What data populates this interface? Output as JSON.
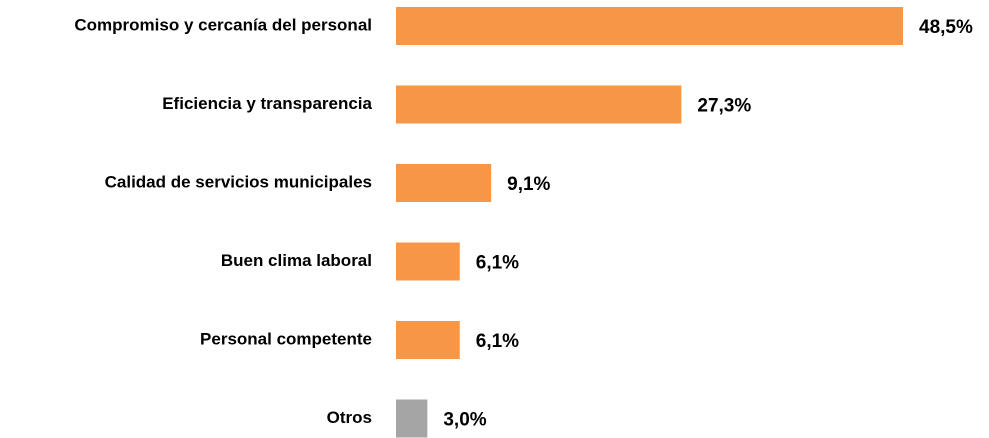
{
  "chart_data": {
    "type": "bar",
    "orientation": "horizontal",
    "categories": [
      "Compromiso y cercanía del personal",
      "Eficiencia y transparencia",
      "Calidad de servicios municipales",
      "Buen clima laboral",
      "Personal competente",
      "Otros"
    ],
    "values": [
      48.5,
      27.3,
      9.1,
      6.1,
      6.1,
      3.0
    ],
    "value_labels": [
      "48,5%",
      "27,3%",
      "9,1%",
      "6,1%",
      "6,1%",
      "3,0%"
    ],
    "colors": [
      "#F79646",
      "#F79646",
      "#F79646",
      "#F79646",
      "#F79646",
      "#A5A5A5"
    ]
  }
}
